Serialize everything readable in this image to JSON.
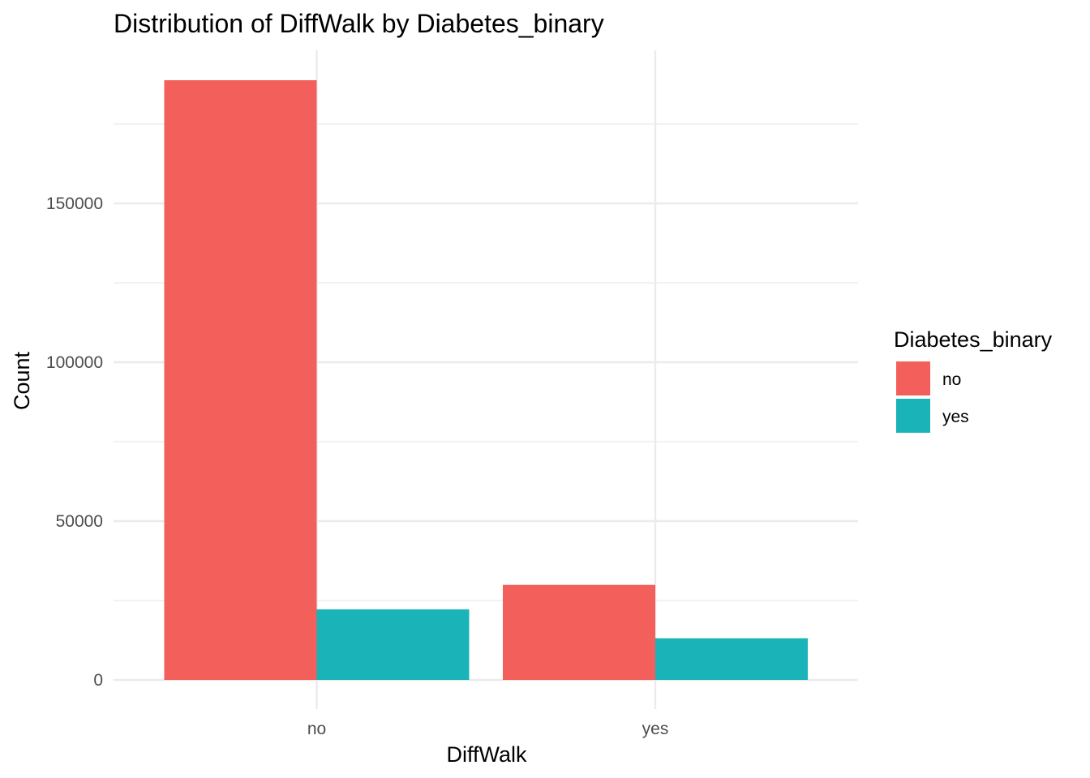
{
  "chart_data": {
    "type": "bar",
    "title": "Distribution of DiffWalk by Diabetes_binary",
    "xlabel": "DiffWalk",
    "ylabel": "Count",
    "categories": [
      "no",
      "yes"
    ],
    "series": [
      {
        "name": "no",
        "color": "#F8766D",
        "values": [
          188780,
          29924
        ]
      },
      {
        "name": "yes",
        "color": "#00BFC4",
        "values": [
          22225,
          13121
        ]
      }
    ],
    "yticks": [
      0,
      50000,
      100000,
      150000
    ],
    "ytick_labels": [
      "0",
      "50000",
      "100000",
      "150000"
    ],
    "ylim": [
      0,
      198000
    ],
    "grid": true,
    "legend": {
      "title": "Diabetes_binary",
      "position": "right"
    },
    "bar_display_color_no": "#F35F5B",
    "bar_display_color_yes": "#1AB3B8"
  }
}
